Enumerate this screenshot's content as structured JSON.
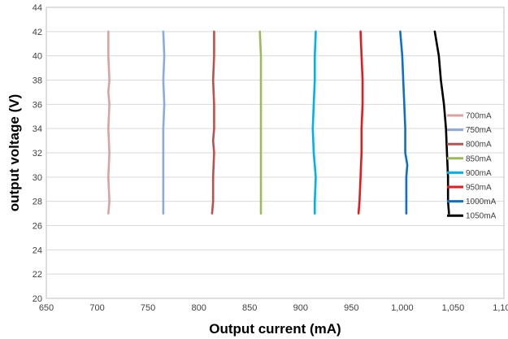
{
  "chart_data": {
    "type": "line",
    "title": "",
    "xlabel": "Output current (mA)",
    "ylabel": "output voltage (V)",
    "xlim": [
      650,
      1100
    ],
    "ylim": [
      20,
      44
    ],
    "xticks": [
      650,
      700,
      750,
      800,
      850,
      900,
      950,
      1000,
      1050,
      1100
    ],
    "xtick_labels": [
      "650",
      "700",
      "750",
      "800",
      "850",
      "900",
      "950",
      "1,000",
      "1,050",
      "1,100"
    ],
    "yticks": [
      20,
      22,
      24,
      26,
      28,
      30,
      32,
      34,
      36,
      38,
      40,
      42,
      44
    ],
    "ytick_labels": [
      "20",
      "22",
      "24",
      "26",
      "28",
      "30",
      "32",
      "34",
      "36",
      "38",
      "40",
      "42",
      "44"
    ],
    "grid": "horizontal",
    "legend_position": "right",
    "series": [
      {
        "name": "700mA",
        "color": "#d9a3a3",
        "points": [
          [
            711,
            27
          ],
          [
            712,
            28
          ],
          [
            711,
            30
          ],
          [
            712,
            32
          ],
          [
            711,
            34
          ],
          [
            712,
            36
          ],
          [
            711,
            37
          ],
          [
            712,
            38
          ],
          [
            711,
            40
          ],
          [
            711,
            42
          ]
        ]
      },
      {
        "name": "750mA",
        "color": "#8eaadb",
        "points": [
          [
            765,
            27
          ],
          [
            765,
            28
          ],
          [
            765,
            30
          ],
          [
            765,
            32
          ],
          [
            765,
            34
          ],
          [
            766,
            36
          ],
          [
            765,
            38
          ],
          [
            766,
            40
          ],
          [
            765,
            42
          ]
        ]
      },
      {
        "name": "800mA",
        "color": "#c0504d",
        "points": [
          [
            813,
            27
          ],
          [
            814,
            28
          ],
          [
            814,
            30
          ],
          [
            815,
            32
          ],
          [
            814,
            33
          ],
          [
            815,
            34
          ],
          [
            815,
            36
          ],
          [
            814,
            38
          ],
          [
            815,
            40
          ],
          [
            815,
            42
          ]
        ]
      },
      {
        "name": "850mA",
        "color": "#9bbb59",
        "points": [
          [
            861,
            27
          ],
          [
            861,
            28
          ],
          [
            861,
            30
          ],
          [
            861,
            32
          ],
          [
            861,
            34
          ],
          [
            861,
            36
          ],
          [
            861,
            38
          ],
          [
            861,
            40
          ],
          [
            860,
            42
          ]
        ]
      },
      {
        "name": "900mA",
        "color": "#00b0f0",
        "points": [
          [
            914,
            27
          ],
          [
            914,
            28
          ],
          [
            915,
            30
          ],
          [
            913,
            32
          ],
          [
            912,
            34
          ],
          [
            913,
            36
          ],
          [
            914,
            38
          ],
          [
            914,
            40
          ],
          [
            915,
            42
          ]
        ]
      },
      {
        "name": "950mA",
        "color": "#e8191c",
        "points": [
          [
            957,
            27
          ],
          [
            958,
            28
          ],
          [
            959,
            30
          ],
          [
            960,
            32
          ],
          [
            960,
            34
          ],
          [
            961,
            36
          ],
          [
            961,
            38
          ],
          [
            960,
            40
          ],
          [
            959,
            42
          ]
        ]
      },
      {
        "name": "1000mA",
        "color": "#0f6fc6",
        "points": [
          [
            1004,
            27
          ],
          [
            1004,
            28
          ],
          [
            1004,
            30
          ],
          [
            1005,
            31
          ],
          [
            1003,
            32
          ],
          [
            1003,
            34
          ],
          [
            1002,
            36
          ],
          [
            1001,
            38
          ],
          [
            1000,
            40
          ],
          [
            998,
            42
          ]
        ]
      },
      {
        "name": "1050mA",
        "color": "#000000",
        "points": [
          [
            1046,
            27
          ],
          [
            1045,
            28
          ],
          [
            1045,
            30
          ],
          [
            1044,
            32
          ],
          [
            1043,
            34
          ],
          [
            1041,
            36
          ],
          [
            1038,
            38
          ],
          [
            1036,
            40
          ],
          [
            1032,
            42
          ]
        ]
      }
    ]
  }
}
